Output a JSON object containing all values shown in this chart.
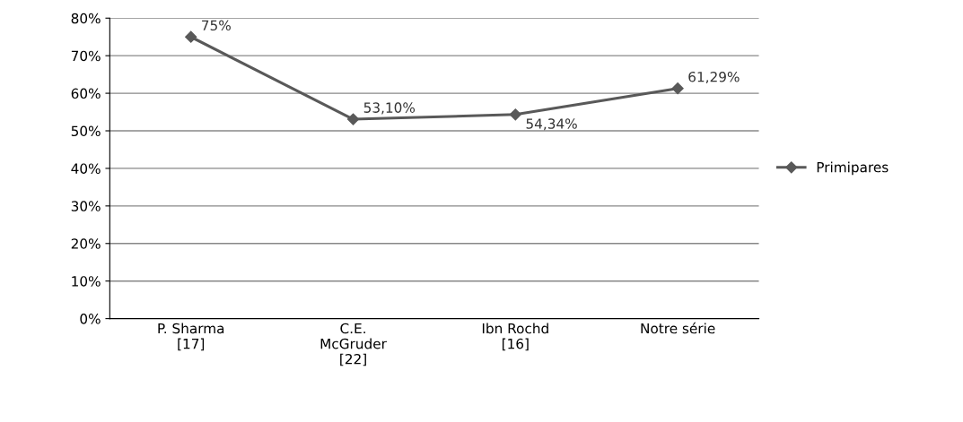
{
  "chart_data": {
    "type": "line",
    "categories": [
      "P. Sharma\n[17]",
      "C.E.\nMcGruder\n[22]",
      "Ibn Rochd\n[16]",
      "Notre série"
    ],
    "series": [
      {
        "name": "Primipares",
        "color": "#595959",
        "values": [
          75,
          53.1,
          54.34,
          61.29
        ],
        "value_labels": [
          "75%",
          "53,10%",
          "54,34%",
          "61,29%"
        ]
      }
    ],
    "ylim": [
      0,
      80
    ],
    "yticks": [
      {
        "value": 0,
        "label": "0%"
      },
      {
        "value": 10,
        "label": "10%"
      },
      {
        "value": 20,
        "label": "20%"
      },
      {
        "value": 30,
        "label": "30%"
      },
      {
        "value": 40,
        "label": "40%"
      },
      {
        "value": 50,
        "label": "50%"
      },
      {
        "value": 60,
        "label": "60%"
      },
      {
        "value": 70,
        "label": "70%"
      },
      {
        "value": 80,
        "label": "80%"
      }
    ],
    "grid": "y",
    "legend": "right",
    "marker": "diamond",
    "line_style": "solid"
  }
}
